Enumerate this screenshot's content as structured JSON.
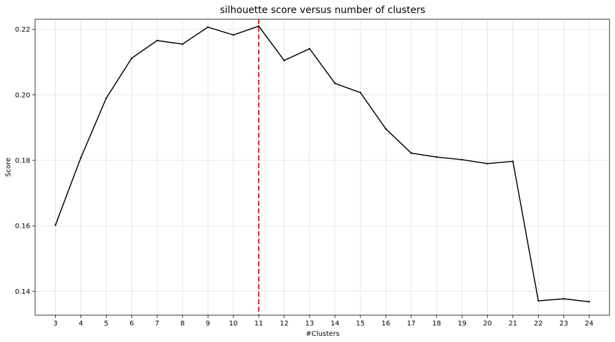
{
  "chart_data": {
    "type": "line",
    "title": "silhouette score versus number of clusters",
    "xlabel": "#Clusters",
    "ylabel": "Score",
    "x": [
      3,
      4,
      5,
      6,
      7,
      8,
      9,
      10,
      11,
      12,
      13,
      14,
      15,
      16,
      17,
      18,
      19,
      20,
      21,
      22,
      23,
      24
    ],
    "series": [
      {
        "values": [
          0.1602,
          0.1808,
          0.199,
          0.2112,
          0.2166,
          0.2155,
          0.2207,
          0.2183,
          0.221,
          0.2105,
          0.2141,
          0.2035,
          0.2007,
          0.1896,
          0.1822,
          0.181,
          0.1802,
          0.179,
          0.1797,
          0.1371,
          0.1377,
          0.1368
        ],
        "color": "#000000"
      }
    ],
    "vline": {
      "x": 11,
      "color": "#d62728",
      "style": "dashed"
    },
    "xlim": [
      2.2,
      24.8
    ],
    "ylim": [
      0.1327,
      0.2231
    ],
    "yticks": [
      0.14,
      0.16,
      0.18,
      0.2,
      0.22
    ],
    "ytick_labels": [
      "0.14",
      "0.16",
      "0.18",
      "0.20",
      "0.22"
    ],
    "xticks": [
      3,
      4,
      5,
      6,
      7,
      8,
      9,
      10,
      11,
      12,
      13,
      14,
      15,
      16,
      17,
      18,
      19,
      20,
      21,
      22,
      23,
      24
    ],
    "xtick_labels": [
      "3",
      "4",
      "5",
      "6",
      "7",
      "8",
      "9",
      "10",
      "11",
      "12",
      "13",
      "14",
      "15",
      "16",
      "17",
      "18",
      "19",
      "20",
      "21",
      "22",
      "23",
      "24"
    ],
    "grid": true,
    "grid_color": "#e6e6e6",
    "legend": "none"
  }
}
